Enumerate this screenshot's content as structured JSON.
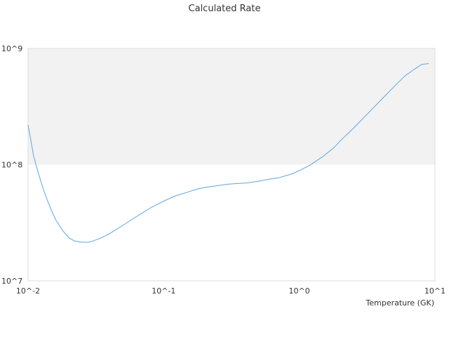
{
  "chart_data": {
    "type": "line",
    "title": "Calculated Rate",
    "xlabel": "Temperature (GK)",
    "ylabel": "",
    "x_scale": "log",
    "y_scale": "log",
    "xlim": [
      0.01,
      10
    ],
    "ylim": [
      10000000,
      1000000000
    ],
    "x_tick_labels": [
      "10^-2",
      "10^-1",
      "10^0",
      "10^1"
    ],
    "y_tick_labels": [
      "10^7",
      "10^8",
      "10^9"
    ],
    "grid": false,
    "legend": "none",
    "shaded_band": {
      "y_from": 100000000,
      "y_to": 1000000000
    },
    "colors": {
      "line": "#5aa5e6",
      "band": "#f2f2f2",
      "plot_border": "#dddddd"
    },
    "series": [
      {
        "x": [
          0.01,
          0.011,
          0.012,
          0.013,
          0.014,
          0.015,
          0.016,
          0.018,
          0.02,
          0.022,
          0.025,
          0.028,
          0.03,
          0.035,
          0.04,
          0.05,
          0.06,
          0.07,
          0.08,
          0.09,
          0.1,
          0.12,
          0.15,
          0.18,
          0.2,
          0.25,
          0.3,
          0.4,
          0.5,
          0.6,
          0.7,
          0.8,
          0.9,
          1.0,
          1.2,
          1.5,
          1.8,
          2.0,
          2.5,
          3.0,
          4.0,
          5.0,
          6.0,
          7.0,
          8.0,
          9.0
        ],
        "y": [
          220000000,
          118000000,
          82000000,
          61000000,
          48000000,
          39500000,
          33500000,
          27000000,
          23500000,
          22000000,
          21500000,
          21500000,
          22000000,
          23500000,
          25500000,
          30000000,
          34500000,
          38500000,
          42500000,
          45500000,
          48500000,
          53500000,
          58000000,
          62000000,
          63500000,
          66000000,
          68000000,
          69500000,
          72000000,
          75000000,
          77000000,
          80500000,
          84000000,
          89000000,
          99000000,
          118000000,
          140000000,
          160000000,
          205000000,
          255000000,
          360000000,
          470000000,
          580000000,
          660000000,
          730000000,
          740000000
        ]
      }
    ]
  }
}
